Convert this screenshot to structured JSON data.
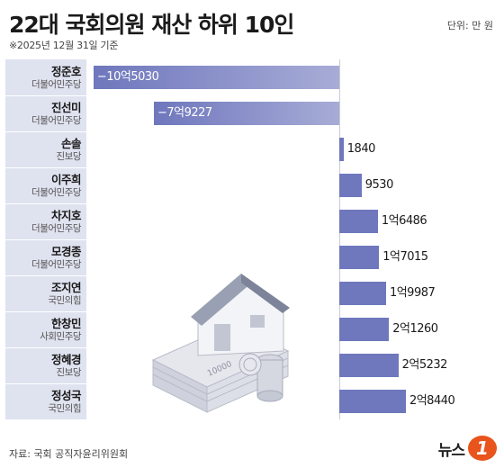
{
  "header": {
    "title": "22대 국회의원 재산 하위 10인",
    "subtitle": "※2025년 12월 31일 기준",
    "unit": "단위: 만 원"
  },
  "footer": {
    "source": "자료: 국회 공직자윤리위원회",
    "logo_text": "뉴스",
    "logo_mark": "1"
  },
  "illustration": {
    "bill_label": "10000"
  },
  "chart_data": {
    "type": "bar",
    "orientation": "horizontal",
    "title": "22대 국회의원 재산 하위 10인",
    "unit": "만 원",
    "categories": [
      "정준호",
      "진선미",
      "손솔",
      "이주희",
      "차지호",
      "모경종",
      "조지연",
      "한창민",
      "정혜경",
      "정성국"
    ],
    "parties": [
      "더불어민주당",
      "더불어민주당",
      "진보당",
      "더불어민주당",
      "더불어민주당",
      "더불어민주당",
      "국민의힘",
      "사회민주당",
      "진보당",
      "국민의힘"
    ],
    "values": [
      -105030,
      -79227,
      1840,
      9530,
      16486,
      17015,
      19987,
      21260,
      25232,
      28440
    ],
    "value_labels": [
      "−10억5030",
      "−7억9227",
      "1840",
      "9530",
      "1억6486",
      "1억7015",
      "1억9987",
      "2억1260",
      "2억5232",
      "2억8440"
    ],
    "colors": {
      "bar": "#6f77bd",
      "label_panel": "#dfe2ef"
    }
  }
}
